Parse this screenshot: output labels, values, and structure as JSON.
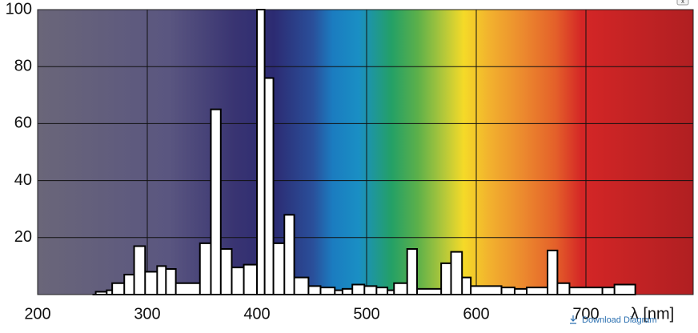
{
  "chart_data": {
    "type": "step-area",
    "x_label": "λ [nm]",
    "xlim": [
      200,
      800
    ],
    "ylim": [
      0,
      100
    ],
    "xticks": [
      200,
      300,
      400,
      500,
      600,
      700
    ],
    "yticks": [
      20,
      40,
      60,
      80,
      100
    ],
    "grid": true,
    "color": "#ffffff",
    "series": [
      {
        "x": [
          250,
          253,
          263,
          268,
          279,
          288,
          298,
          309,
          317,
          326,
          348,
          358,
          367,
          377,
          388,
          400,
          407,
          415,
          425,
          434,
          447,
          458,
          471,
          478,
          487,
          498,
          509,
          519,
          525,
          537,
          546,
          568,
          577,
          587,
          595,
          623,
          635,
          646,
          665,
          674,
          685,
          715,
          726,
          745
        ],
        "values": [
          0,
          1,
          1.5,
          4,
          7,
          17,
          8,
          10,
          9,
          4,
          18,
          65,
          16,
          9.5,
          10.5,
          100,
          76,
          18,
          28,
          6,
          3,
          2.5,
          1.5,
          2,
          3.5,
          3,
          2.5,
          1.5,
          4,
          16,
          2,
          11,
          15,
          6,
          3,
          2.5,
          2,
          2.5,
          15.5,
          4,
          2.5,
          2.5,
          3.5,
          0
        ]
      }
    ]
  },
  "ui": {
    "download": "Download Diagram",
    "close": "x"
  }
}
